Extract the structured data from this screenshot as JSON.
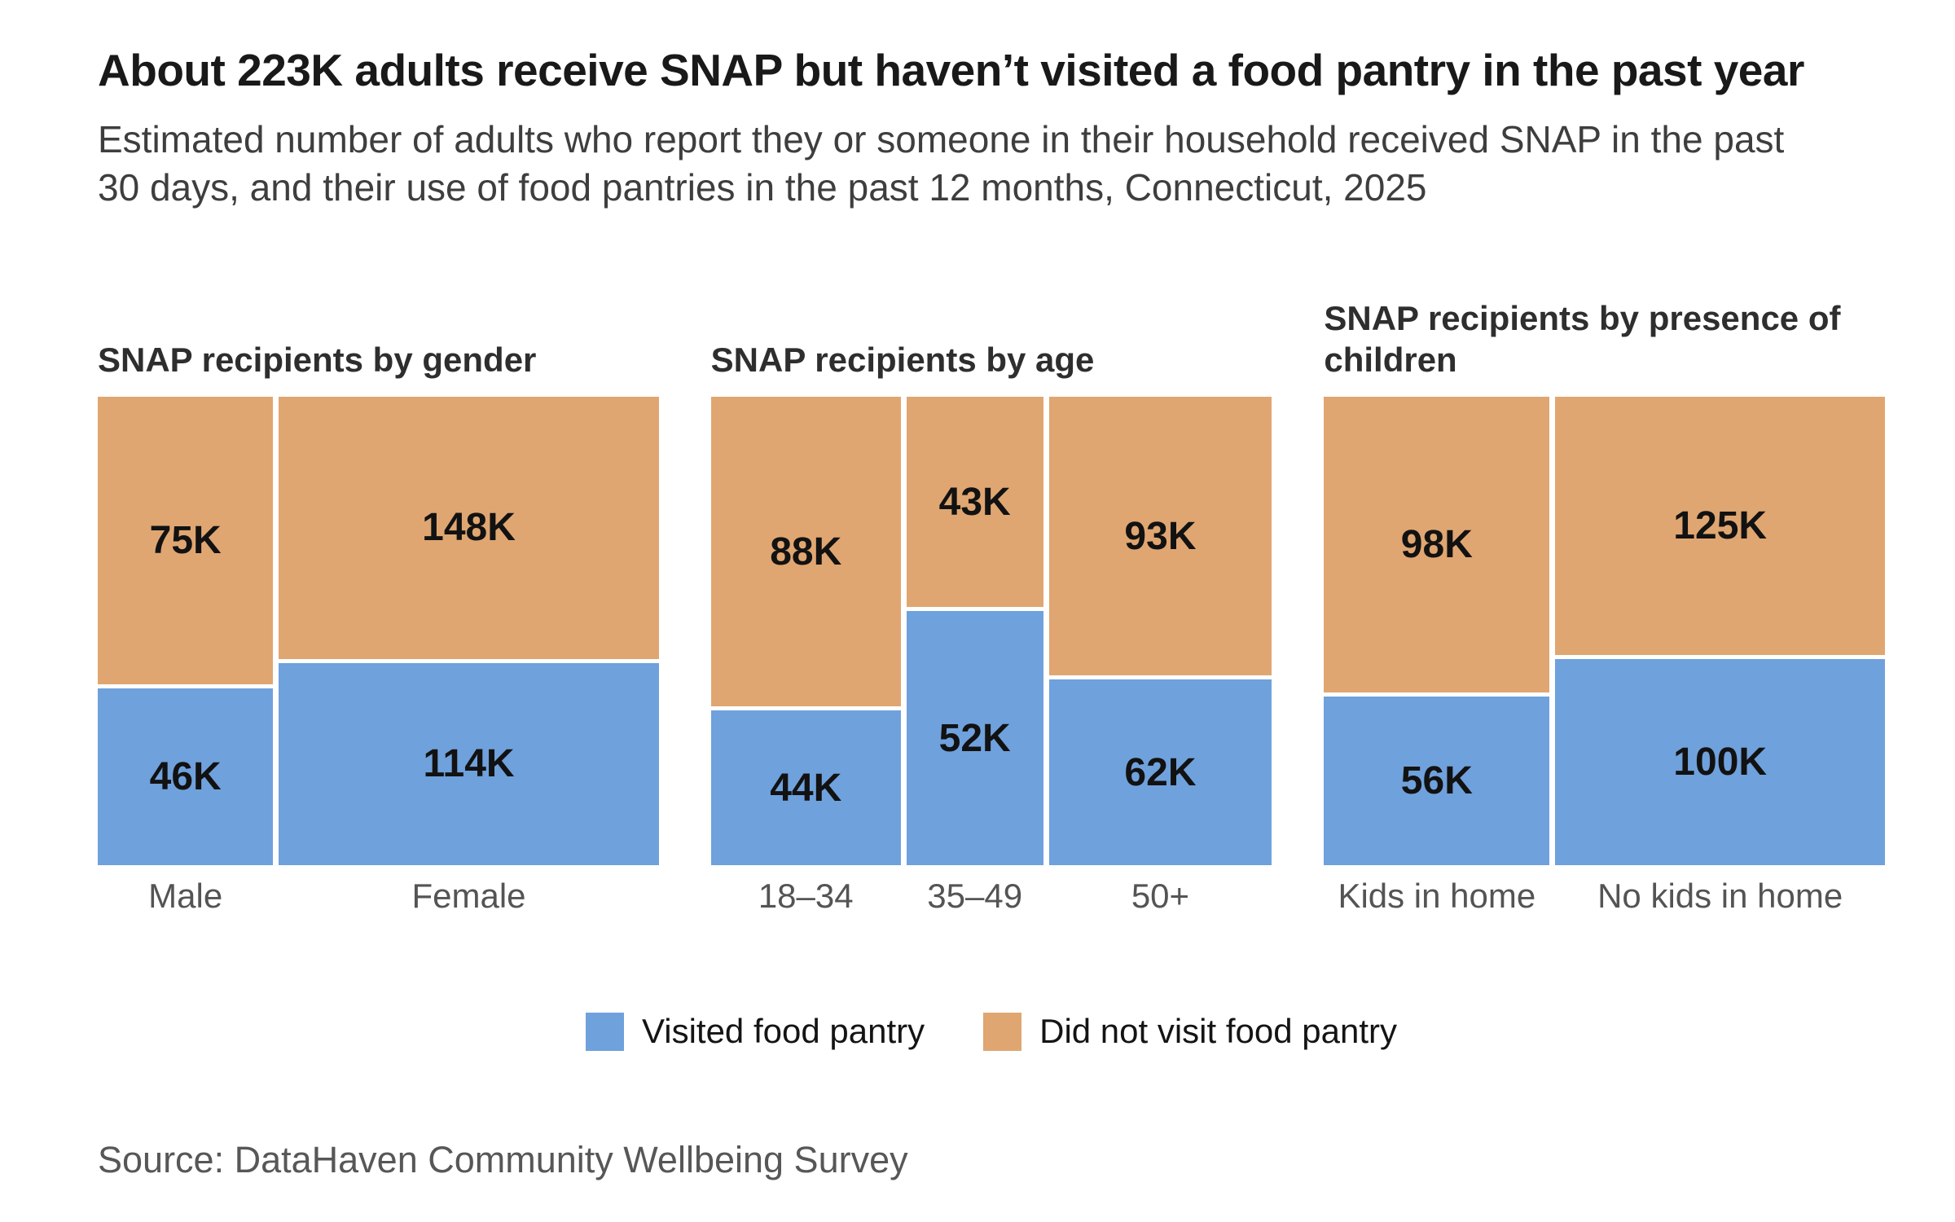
{
  "title": "About 223K adults receive SNAP but haven’t visited a food pantry in the past year",
  "subtitle": "Estimated number of adults who report they or someone in their household received SNAP in the past 30 days, and their use of food pantries in the past 12 months, Connecticut, 2025",
  "source": "Source: DataHaven Community Wellbeing Survey",
  "colors": {
    "visited": "#6FA1DC",
    "not_visited": "#E0A671"
  },
  "legend": {
    "items": [
      {
        "key": "visited",
        "label": "Visited food pantry"
      },
      {
        "key": "not_visited",
        "label": "Did not visit food pantry"
      }
    ]
  },
  "chart_data": [
    {
      "type": "mosaic",
      "title": "SNAP recipients by gender",
      "unit": "K",
      "categories": [
        "Male",
        "Female"
      ],
      "series": [
        {
          "name": "Visited food pantry",
          "values": [
            46,
            114
          ]
        },
        {
          "name": "Did not visit food pantry",
          "values": [
            75,
            148
          ]
        }
      ],
      "column_totals": [
        121,
        262
      ],
      "layout_hint": "column width proportional to category total; blue segment on bottom, orange on top"
    },
    {
      "type": "mosaic",
      "title": "SNAP recipients by age",
      "unit": "K",
      "categories": [
        "18–34",
        "35–49",
        "50+"
      ],
      "series": [
        {
          "name": "Visited food pantry",
          "values": [
            44,
            52,
            62
          ]
        },
        {
          "name": "Did not visit food pantry",
          "values": [
            88,
            43,
            93
          ]
        }
      ],
      "column_totals": [
        132,
        95,
        155
      ],
      "layout_hint": "column width proportional to category total; blue segment on bottom, orange on top"
    },
    {
      "type": "mosaic",
      "title": "SNAP recipients by presence of children",
      "unit": "K",
      "categories": [
        "Kids in home",
        "No kids in home"
      ],
      "series": [
        {
          "name": "Visited food pantry",
          "values": [
            56,
            100
          ]
        },
        {
          "name": "Did not visit food pantry",
          "values": [
            98,
            125
          ]
        }
      ],
      "column_totals": [
        154,
        225
      ],
      "layout_hint": "column width proportional to category total; blue segment on bottom, orange on top"
    }
  ]
}
